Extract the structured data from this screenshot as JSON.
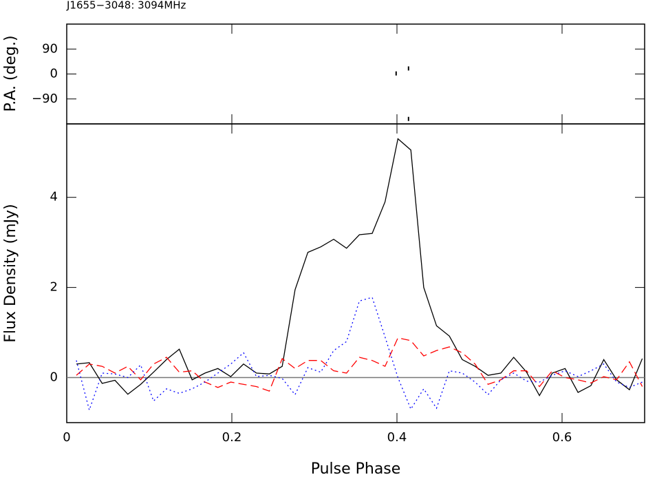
{
  "chart_data": [
    {
      "type": "scatter",
      "title": "J1655−3048: 3094MHz",
      "y_label": "P.A. (deg.)",
      "x": [
        0.399,
        0.414,
        0.414
      ],
      "values": [
        2,
        20,
        -162
      ],
      "color": "#000000",
      "xlim": [
        0,
        0.7
      ],
      "xticks": [
        0,
        0.2,
        0.4,
        0.6
      ],
      "ylim": [
        -180,
        180
      ],
      "yticks": [
        90,
        0,
        {
          "value": -90,
          "label": "−90"
        }
      ]
    },
    {
      "type": "line",
      "x_label": "Pulse Phase",
      "y_label": "Flux Density (mJy)",
      "x": [
        0.0117,
        0.0273,
        0.0429,
        0.0584,
        0.074,
        0.0896,
        0.1052,
        0.1208,
        0.1363,
        0.1519,
        0.1675,
        0.1831,
        0.1987,
        0.2142,
        0.2298,
        0.2454,
        0.261,
        0.2766,
        0.2921,
        0.3077,
        0.3233,
        0.3389,
        0.3545,
        0.37,
        0.3856,
        0.4012,
        0.4168,
        0.4324,
        0.4479,
        0.4635,
        0.4791,
        0.4947,
        0.5103,
        0.5258,
        0.5414,
        0.557,
        0.5726,
        0.5882,
        0.6037,
        0.6193,
        0.6349,
        0.6505,
        0.6661,
        0.6816,
        0.6972
      ],
      "series": [
        {
          "color": "#000000",
          "linestyle": "solid",
          "values": [
            0.3,
            0.33,
            -0.13,
            -0.06,
            -0.37,
            -0.15,
            0.12,
            0.4,
            0.63,
            -0.05,
            0.1,
            0.2,
            0.02,
            0.3,
            0.1,
            0.08,
            0.25,
            1.95,
            2.78,
            2.9,
            3.07,
            2.87,
            3.17,
            3.2,
            3.9,
            5.3,
            5.05,
            2.0,
            1.15,
            0.92,
            0.4,
            0.25,
            0.05,
            0.1,
            0.45,
            0.12,
            -0.4,
            0.1,
            0.2,
            -0.33,
            -0.18,
            0.4,
            -0.05,
            -0.27,
            0.42
          ]
        },
        {
          "color": "#ff0000",
          "linestyle": "dashed",
          "values": [
            0.05,
            0.3,
            0.25,
            0.1,
            0.25,
            -0.05,
            0.3,
            0.45,
            0.12,
            0.15,
            -0.1,
            -0.22,
            -0.1,
            -0.15,
            -0.2,
            -0.3,
            0.42,
            0.2,
            0.38,
            0.38,
            0.15,
            0.1,
            0.45,
            0.38,
            0.25,
            0.88,
            0.82,
            0.48,
            0.6,
            0.68,
            0.55,
            0.3,
            -0.15,
            -0.05,
            0.15,
            0.15,
            -0.2,
            0.15,
            0.0,
            -0.05,
            -0.12,
            0.02,
            -0.05,
            0.35,
            -0.2
          ]
        },
        {
          "color": "#0000ff",
          "linestyle": "dotted",
          "values": [
            0.38,
            -0.72,
            0.1,
            0.08,
            0.0,
            0.28,
            -0.52,
            -0.25,
            -0.35,
            -0.25,
            -0.1,
            0.1,
            0.3,
            0.55,
            0.02,
            0.05,
            -0.02,
            -0.38,
            0.22,
            0.12,
            0.6,
            0.8,
            1.7,
            1.78,
            0.9,
            0.0,
            -0.7,
            -0.25,
            -0.68,
            0.15,
            0.1,
            -0.1,
            -0.38,
            -0.05,
            0.1,
            -0.08,
            -0.1,
            0.05,
            0.15,
            0.02,
            0.15,
            0.3,
            -0.1,
            -0.22,
            -0.1
          ]
        }
      ],
      "zero_line": true,
      "xlim": [
        0,
        0.7
      ],
      "xticks": [
        0,
        0.2,
        0.4,
        0.6
      ],
      "ylim": [
        -1,
        5.63
      ],
      "yticks": [
        0,
        2,
        4
      ]
    }
  ]
}
